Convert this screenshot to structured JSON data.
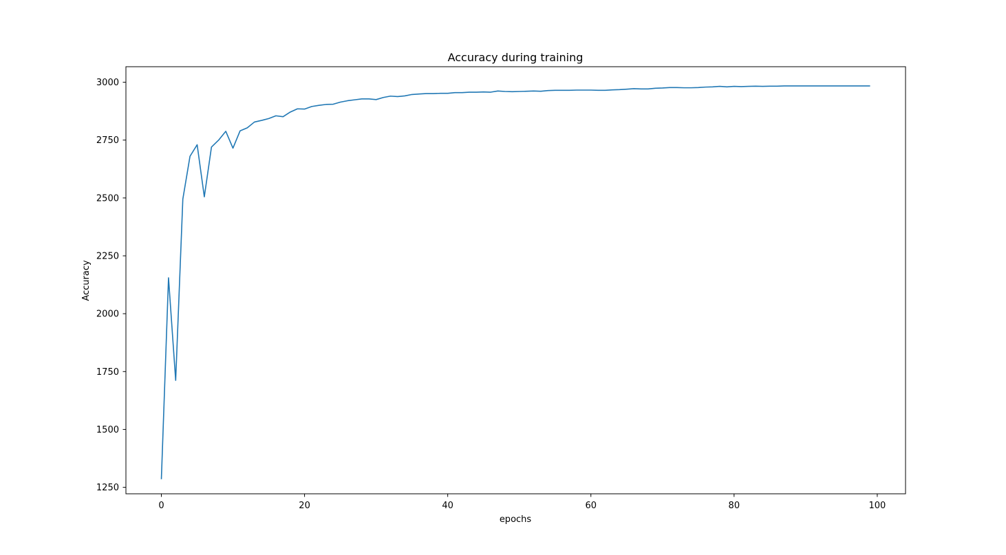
{
  "chart_data": {
    "type": "line",
    "title": "Accuracy during training",
    "xlabel": "epochs",
    "ylabel": "Accuracy",
    "xlim": [
      -4.95,
      103.95
    ],
    "ylim": [
      1222,
      3067
    ],
    "xticks": [
      0,
      20,
      40,
      60,
      80,
      100
    ],
    "yticks": [
      1250,
      1500,
      1750,
      2000,
      2250,
      2500,
      2750,
      3000
    ],
    "xtick_labels": [
      "0",
      "20",
      "40",
      "60",
      "80",
      "100"
    ],
    "ytick_labels": [
      "1250",
      "1500",
      "1750",
      "2000",
      "2250",
      "2500",
      "2750",
      "3000"
    ],
    "grid": false,
    "line_color": "#1f77b4",
    "series": [
      {
        "x": [
          0,
          1,
          2,
          3,
          4,
          5,
          6,
          7,
          8,
          9,
          10,
          11,
          12,
          13,
          14,
          15,
          16,
          17,
          18,
          19,
          20,
          21,
          22,
          23,
          24,
          25,
          26,
          27,
          28,
          29,
          30,
          31,
          32,
          33,
          34,
          35,
          36,
          37,
          38,
          39,
          40,
          41,
          42,
          43,
          44,
          45,
          46,
          47,
          48,
          49,
          50,
          51,
          52,
          53,
          54,
          55,
          56,
          57,
          58,
          59,
          60,
          61,
          62,
          63,
          64,
          65,
          66,
          67,
          68,
          69,
          70,
          71,
          72,
          73,
          74,
          75,
          76,
          77,
          78,
          79,
          80,
          81,
          82,
          83,
          84,
          85,
          86,
          87,
          88,
          89,
          90,
          91,
          92,
          93,
          94,
          95,
          96,
          97,
          98,
          99
        ],
        "values": [
          1285,
          2155,
          1712,
          2495,
          2680,
          2730,
          2505,
          2720,
          2750,
          2788,
          2715,
          2790,
          2803,
          2828,
          2835,
          2843,
          2855,
          2851,
          2871,
          2885,
          2884,
          2895,
          2900,
          2904,
          2905,
          2914,
          2920,
          2924,
          2928,
          2928,
          2925,
          2934,
          2940,
          2938,
          2941,
          2947,
          2949,
          2951,
          2951,
          2952,
          2952,
          2955,
          2955,
          2957,
          2957,
          2958,
          2957,
          2962,
          2960,
          2959,
          2960,
          2961,
          2962,
          2961,
          2964,
          2965,
          2965,
          2965,
          2966,
          2966,
          2966,
          2965,
          2965,
          2967,
          2968,
          2970,
          2972,
          2971,
          2971,
          2974,
          2975,
          2977,
          2977,
          2976,
          2976,
          2977,
          2979,
          2980,
          2982,
          2980,
          2982,
          2981,
          2982,
          2983,
          2982,
          2983,
          2983,
          2984,
          2984,
          2984,
          2984,
          2984,
          2984,
          2984,
          2984,
          2984,
          2984,
          2984,
          2984,
          2984
        ]
      }
    ]
  }
}
